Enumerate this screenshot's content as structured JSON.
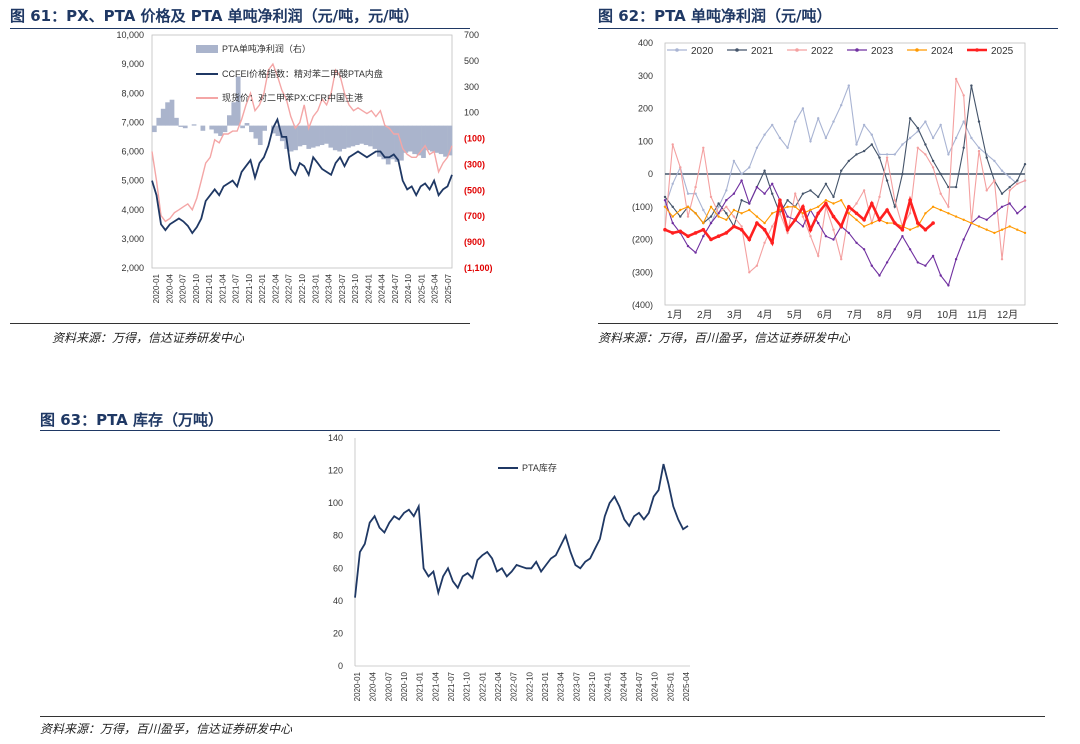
{
  "fig61": {
    "title": "图 61：PX、PTA 价格及 PTA 单吨净利润（元/吨，元/吨）",
    "source": "资料来源：万得，信达证券研发中心"
  },
  "fig62": {
    "title": "图 62：PTA 单吨净利润（元/吨）",
    "source": "资料来源：万得，百川盈孚，信达证券研发中心"
  },
  "fig63": {
    "title": "图 63：PTA 库存（万吨）",
    "source": "资料来源：万得，百川盈孚，信达证券研发中心"
  },
  "chart_data": [
    {
      "id": "fig61",
      "type": "line",
      "left_axis": {
        "ticks": [
          "2,000",
          "3,000",
          "4,000",
          "5,000",
          "6,000",
          "7,000",
          "8,000",
          "9,000",
          "10,000"
        ],
        "ylim": [
          2000,
          10000
        ]
      },
      "right_axis": {
        "ticks": [
          "700",
          "500",
          "300",
          "100",
          "(100)",
          "(300)",
          "(500)",
          "(700)",
          "(900)",
          "(1,100)"
        ],
        "ylim": [
          -1100,
          700
        ],
        "negative_color": "#e00000"
      },
      "x_ticks": [
        "2020-01",
        "2020-04",
        "2020-07",
        "2020-10",
        "2021-01",
        "2021-04",
        "2021-07",
        "2021-10",
        "2022-01",
        "2022-04",
        "2022-07",
        "2022-10",
        "2023-01",
        "2023-04",
        "2023-07",
        "2023-10",
        "2024-01",
        "2024-04",
        "2024-07",
        "2024-10",
        "2025-01",
        "2025-04",
        "2025-07"
      ],
      "series": [
        {
          "name": "PTA单吨净利润（右）",
          "style": "area",
          "color": "#aab4cc",
          "axis": "right",
          "values": [
            -50,
            60,
            130,
            180,
            200,
            60,
            -10,
            -20,
            0,
            10,
            0,
            -40,
            0,
            -30,
            -60,
            -80,
            -50,
            80,
            180,
            380,
            -20,
            20,
            -50,
            -100,
            -150,
            -40,
            0,
            -60,
            -80,
            -120,
            -180,
            -200,
            -190,
            -160,
            -150,
            -180,
            -170,
            -160,
            -150,
            -140,
            -170,
            -190,
            -200,
            -180,
            -170,
            -160,
            -150,
            -140,
            -150,
            -160,
            -180,
            -240,
            -260,
            -300,
            -260,
            -280,
            -270,
            -210,
            -200,
            -220,
            -230,
            -250,
            -190,
            -200,
            -210,
            -220,
            -240,
            -230
          ]
        },
        {
          "name": "CCFEI价格指数：精对苯二甲酸PTA内盘",
          "style": "line",
          "color": "#1f3864",
          "axis": "left",
          "values": [
            5000,
            4500,
            3500,
            3300,
            3500,
            3600,
            3700,
            3600,
            3450,
            3200,
            3400,
            3700,
            4300,
            4500,
            4700,
            4500,
            4800,
            4900,
            5000,
            4800,
            5300,
            5500,
            5700,
            5100,
            5600,
            5800,
            6200,
            6800,
            7100,
            6500,
            6500,
            5400,
            5200,
            5600,
            5500,
            5200,
            5800,
            5600,
            5400,
            5300,
            5200,
            5600,
            5800,
            5500,
            5800,
            5900,
            6000,
            5900,
            5800,
            5900,
            6000,
            6000,
            5800,
            5800,
            5900,
            5700,
            5000,
            4700,
            4800,
            4500,
            4800,
            4900,
            4700,
            5000,
            4500,
            4700,
            4800,
            5200
          ]
        },
        {
          "name": "现货价：对二甲苯PX:CFR中国主港",
          "style": "line",
          "color": "#f4a6a6",
          "axis": "left",
          "values": [
            6000,
            5000,
            3800,
            3600,
            3700,
            3900,
            4000,
            4100,
            4200,
            4000,
            4400,
            5000,
            5600,
            5800,
            6400,
            6300,
            6600,
            6600,
            6700,
            6700,
            7100,
            7600,
            8000,
            7400,
            7600,
            8000,
            8800,
            9000,
            8600,
            8100,
            7800,
            7200,
            6800,
            7000,
            7600,
            6800,
            7200,
            7400,
            7800,
            7600,
            8000,
            8800,
            8600,
            8000,
            7600,
            7400,
            7500,
            7400,
            7300,
            7400,
            7200,
            7400,
            6900,
            6800,
            6600,
            6600,
            6100,
            5900,
            5800,
            5800,
            6000,
            6200,
            5900,
            6000,
            5300,
            5600,
            5800,
            6200
          ]
        }
      ]
    },
    {
      "id": "fig62",
      "type": "line",
      "y_ticks": [
        "400",
        "300",
        "200",
        "100",
        "0",
        "(100)",
        "(200)",
        "(300)",
        "(400)"
      ],
      "ylim": [
        -400,
        400
      ],
      "x_ticks": [
        "1月",
        "2月",
        "3月",
        "4月",
        "5月",
        "6月",
        "7月",
        "8月",
        "9月",
        "10月",
        "11月",
        "12月"
      ],
      "series": [
        {
          "name": "2020",
          "color": "#a9b4d3",
          "values": [
            -100,
            -30,
            20,
            -60,
            -60,
            -110,
            -150,
            -100,
            -50,
            40,
            0,
            20,
            80,
            120,
            150,
            110,
            80,
            160,
            200,
            100,
            170,
            110,
            160,
            210,
            270,
            90,
            150,
            120,
            60,
            60,
            60,
            90,
            110,
            130,
            160,
            110,
            150,
            60,
            110,
            160,
            110,
            80,
            60,
            40,
            10,
            -10,
            -30,
            -20
          ]
        },
        {
          "name": "2021",
          "color": "#44546a",
          "values": [
            -70,
            -100,
            -130,
            -100,
            -120,
            -150,
            -130,
            -90,
            -120,
            -160,
            -80,
            -90,
            -40,
            10,
            -60,
            -120,
            -80,
            -100,
            -60,
            -50,
            -70,
            -30,
            -70,
            10,
            40,
            60,
            70,
            90,
            50,
            -20,
            -100,
            0,
            170,
            140,
            90,
            40,
            0,
            -40,
            -40,
            80,
            270,
            160,
            50,
            -20,
            -60,
            -40,
            -20,
            30
          ]
        },
        {
          "name": "2022",
          "color": "#f4a0a0",
          "values": [
            -170,
            90,
            20,
            -130,
            -40,
            80,
            -70,
            -120,
            -100,
            -130,
            -160,
            -300,
            -280,
            -210,
            -160,
            -120,
            -180,
            -60,
            -130,
            -190,
            -250,
            -100,
            -170,
            -260,
            -120,
            -90,
            -50,
            -150,
            -70,
            50,
            -80,
            -160,
            -120,
            80,
            60,
            20,
            -60,
            -100,
            290,
            240,
            -150,
            70,
            -50,
            -20,
            -260,
            -50,
            -30,
            -20
          ]
        },
        {
          "name": "2023",
          "color": "#7030a0",
          "values": [
            -80,
            -150,
            -180,
            -220,
            -240,
            -190,
            -150,
            -120,
            -80,
            -60,
            -20,
            -90,
            -40,
            -60,
            -30,
            -80,
            -130,
            -140,
            -160,
            -110,
            -150,
            -190,
            -200,
            -160,
            -180,
            -210,
            -230,
            -280,
            -310,
            -270,
            -230,
            -190,
            -230,
            -270,
            -280,
            -250,
            -310,
            -340,
            -260,
            -200,
            -150,
            -130,
            -140,
            -120,
            -100,
            -90,
            -120,
            -100
          ]
        },
        {
          "name": "2024",
          "color": "#ff9900",
          "values": [
            -100,
            -130,
            -110,
            -100,
            -120,
            -150,
            -100,
            -130,
            -140,
            -110,
            -120,
            -110,
            -130,
            -150,
            -120,
            -110,
            -100,
            -100,
            -120,
            -110,
            -100,
            -80,
            -90,
            -80,
            -120,
            -140,
            -160,
            -150,
            -140,
            -150,
            -150,
            -160,
            -170,
            -160,
            -120,
            -100,
            -110,
            -120,
            -130,
            -140,
            -150,
            -160,
            -170,
            -180,
            -170,
            -160,
            -170,
            -180
          ]
        },
        {
          "name": "2025",
          "color": "#ff2020",
          "values": [
            -170,
            -180,
            -175,
            -190,
            -180,
            -170,
            -200,
            -190,
            -180,
            -160,
            -170,
            -200,
            -150,
            -170,
            -210,
            -80,
            -170,
            -140,
            -100,
            -170,
            -120,
            -90,
            -130,
            -160,
            -100,
            -120,
            -140,
            -90,
            -140,
            -110,
            -150,
            -170,
            -80,
            -150,
            -170,
            -150
          ]
        }
      ]
    },
    {
      "id": "fig63",
      "type": "line",
      "y_ticks": [
        "0",
        "20",
        "40",
        "60",
        "80",
        "100",
        "120",
        "140"
      ],
      "ylim": [
        0,
        140
      ],
      "x_ticks": [
        "2020-01",
        "2020-04",
        "2020-07",
        "2020-10",
        "2021-01",
        "2021-04",
        "2021-07",
        "2021-10",
        "2022-01",
        "2022-04",
        "2022-07",
        "2022-10",
        "2023-01",
        "2023-04",
        "2023-07",
        "2023-10",
        "2024-01",
        "2024-04",
        "2024-07",
        "2024-10",
        "2025-01",
        "2025-04"
      ],
      "series": [
        {
          "name": "PTA库存",
          "color": "#1f3864",
          "values": [
            42,
            70,
            75,
            88,
            92,
            85,
            82,
            88,
            92,
            90,
            94,
            96,
            92,
            98,
            60,
            55,
            58,
            45,
            55,
            60,
            52,
            48,
            55,
            57,
            54,
            65,
            68,
            70,
            66,
            58,
            60,
            55,
            58,
            62,
            61,
            60,
            60,
            64,
            58,
            62,
            66,
            68,
            74,
            80,
            70,
            62,
            60,
            64,
            66,
            72,
            78,
            92,
            100,
            104,
            98,
            90,
            86,
            92,
            94,
            90,
            94,
            104,
            108,
            124,
            112,
            98,
            90,
            84,
            86
          ]
        }
      ]
    }
  ]
}
